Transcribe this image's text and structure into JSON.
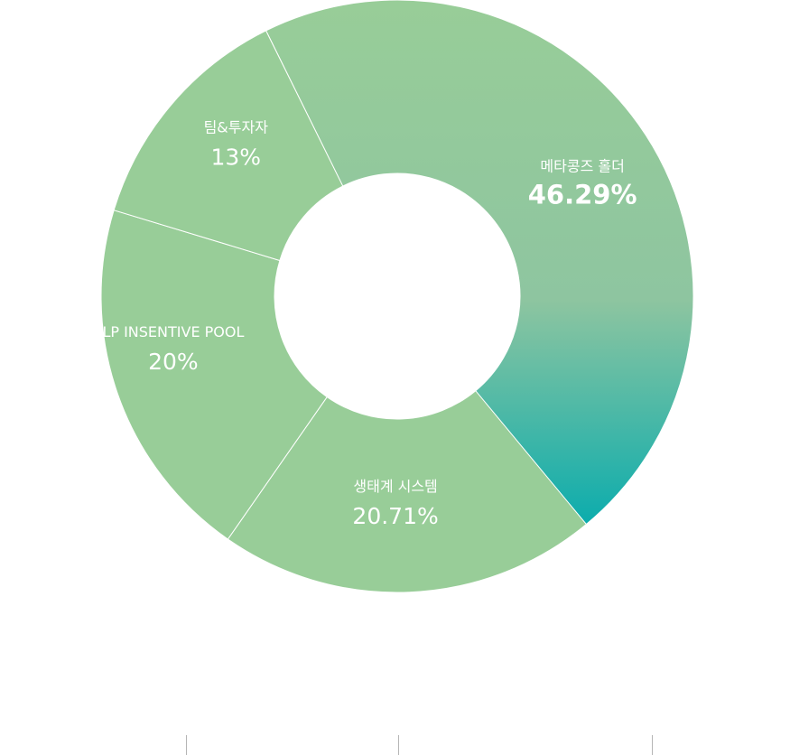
{
  "chart_data": {
    "type": "pie",
    "title": "",
    "slices": [
      {
        "label": "메타콩즈 홀더",
        "value": 46.29,
        "value_label": "46.29%"
      },
      {
        "label": "생태계 시스템",
        "value": 20.71,
        "value_label": "20.71%"
      },
      {
        "label": "LP INSENTIVE POOL",
        "value": 20,
        "value_label": "20%"
      },
      {
        "label": "팀&투자자",
        "value": 13,
        "value_label": "13%"
      }
    ],
    "colors": {
      "slice_fill": "#98cd98",
      "gradient_top": "#98cd98",
      "gradient_mid": "#8ec5a0",
      "gradient_bottom": "#00aaae",
      "separator": "#ffffff",
      "label_text": "#ffffff",
      "tick": "#b5b5b5"
    },
    "donut": true,
    "legend": "none"
  }
}
